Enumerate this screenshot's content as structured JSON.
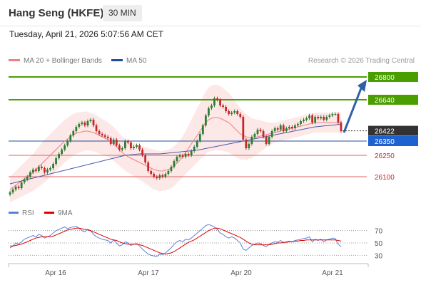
{
  "header": {
    "title": "Hang Seng (HKFE)",
    "timeframe": "30 MIN",
    "datetime": "Tuesday, April 21, 2026 5:07:56 AM CET"
  },
  "legend": {
    "ma20_label": "MA 20 + Bollinger Bands",
    "ma50_label": "MA 50",
    "credit": "Research © 2026 Trading Central"
  },
  "rsi_legend": {
    "rsi_label": "RSI",
    "ma_label": "9MA"
  },
  "colors": {
    "bull": "#2e7d32",
    "bear": "#c62828",
    "ma20": "#f08080",
    "bands_fill": "#fde2e2",
    "ma50": "#4a5aa8",
    "resistance": "#4a9e00",
    "support": "#e06060",
    "pivot": "#1f4e9c",
    "last_price_bg": "#333333",
    "arrow": "#2f5fa8",
    "rsi": "#5b7fd6",
    "rsi_ma": "#e00000"
  },
  "chart_data": [
    {
      "type": "candlestick",
      "title": "Hang Seng (HKFE)",
      "interval": "30 MIN",
      "ylim": [
        25950,
        26860
      ],
      "x_labels": [
        "Apr 16",
        "Apr 17",
        "Apr 20",
        "Apr 21"
      ],
      "levels": [
        {
          "label": "26800",
          "value": 26800,
          "kind": "resistance"
        },
        {
          "label": "26640",
          "value": 26640,
          "kind": "resistance"
        },
        {
          "label": "26422",
          "value": 26422,
          "kind": "last"
        },
        {
          "label": "26350",
          "value": 26350,
          "kind": "pivot"
        },
        {
          "label": "26250",
          "value": 26250,
          "kind": "support"
        },
        {
          "label": "26100",
          "value": 26100,
          "kind": "support"
        }
      ],
      "forecast_target": 26800,
      "closes": [
        25990,
        26010,
        26030,
        26020,
        26060,
        26080,
        26100,
        26130,
        26150,
        26140,
        26170,
        26160,
        26130,
        26150,
        26160,
        26190,
        26230,
        26260,
        26290,
        26320,
        26350,
        26390,
        26420,
        26450,
        26470,
        26480,
        26460,
        26490,
        26500,
        26460,
        26420,
        26400,
        26390,
        26380,
        26370,
        26330,
        26360,
        26320,
        26290,
        26300,
        26350,
        26340,
        26300,
        26310,
        26320,
        26290,
        26250,
        26200,
        26140,
        26120,
        26100,
        26090,
        26110,
        26100,
        26120,
        26140,
        26170,
        26210,
        26240,
        26250,
        26240,
        26260,
        26250,
        26280,
        26310,
        26350,
        26400,
        26460,
        26530,
        26580,
        26600,
        26650,
        26640,
        26600,
        26590,
        26560,
        26540,
        26550,
        26560,
        26540,
        26520,
        26360,
        26300,
        26330,
        26380,
        26400,
        26430,
        26420,
        26380,
        26330,
        26380,
        26420,
        26440,
        26430,
        26460,
        26420,
        26440,
        26450,
        26440,
        26460,
        26470,
        26490,
        26500,
        26510,
        26530,
        26480,
        26520,
        26510,
        26520,
        26500,
        26520,
        26530,
        26540,
        26540,
        26480,
        26420
      ],
      "ma20": [
        26010,
        26025,
        26040,
        26055,
        26070,
        26085,
        26100,
        26115,
        26130,
        26150,
        26170,
        26190,
        26210,
        26230,
        26250,
        26270,
        26290,
        26310,
        26330,
        26350,
        26365,
        26380,
        26395,
        26405,
        26410,
        26415,
        26420,
        26420,
        26415,
        26410,
        26400,
        26390,
        26380,
        26370,
        26360,
        26345,
        26330,
        26310,
        26290,
        26270,
        26255,
        26240,
        26230,
        26220,
        26210,
        26200,
        26190,
        26180,
        26170,
        26160,
        26150,
        26145,
        26140,
        26140,
        26145,
        26150,
        26160,
        26175,
        26195,
        26215,
        26240,
        26270,
        26300,
        26330,
        26360,
        26390,
        26420,
        26450,
        26480,
        26500,
        26510,
        26515,
        26515,
        26510,
        26500,
        26490,
        26480,
        26460,
        26440,
        26420,
        26400,
        26390,
        26380,
        26375,
        26370,
        26375,
        26380,
        26385,
        26390,
        26395,
        26400,
        26405,
        26410,
        26415,
        26420,
        26425,
        26430,
        26435,
        26440,
        26445,
        26450,
        26455,
        26460,
        26465,
        26470,
        26475,
        26480,
        26480,
        26480,
        26480,
        26480,
        26480,
        26480,
        26480,
        26480,
        26480
      ],
      "ma50": [
        26050,
        26055,
        26060,
        26065,
        26070,
        26075,
        26080,
        26085,
        26090,
        26095,
        26100,
        26105,
        26110,
        26115,
        26120,
        26125,
        26130,
        26135,
        26140,
        26145,
        26150,
        26155,
        26160,
        26165,
        26170,
        26175,
        26180,
        26185,
        26190,
        26195,
        26200,
        26205,
        26210,
        26215,
        26220,
        26225,
        26230,
        26235,
        26240,
        26245,
        26250,
        26252,
        26254,
        26256,
        26258,
        26260,
        26260,
        26260,
        26260,
        26260,
        26260,
        26260,
        26260,
        26262,
        26264,
        26266,
        26268,
        26270,
        26272,
        26274,
        26276,
        26278,
        26280,
        26282,
        26284,
        26286,
        26290,
        26294,
        26298,
        26302,
        26306,
        26310,
        26314,
        26318,
        26322,
        26326,
        26330,
        26334,
        26338,
        26342,
        26346,
        26350,
        26354,
        26358,
        26362,
        26366,
        26370,
        26374,
        26378,
        26382,
        26386,
        26390,
        26394,
        26398,
        26402,
        26406,
        26410,
        26414,
        26418,
        26422,
        26426,
        26430,
        26434,
        26438,
        26442,
        26446,
        26450,
        26452,
        26454,
        26456,
        26458,
        26460,
        26462,
        26464,
        26466,
        26468
      ],
      "bb_width": [
        90,
        95,
        100,
        105,
        110,
        115,
        120,
        125,
        130,
        135,
        140,
        145,
        150,
        150,
        150,
        150,
        150,
        150,
        150,
        150,
        150,
        148,
        146,
        144,
        142,
        140,
        138,
        136,
        134,
        132,
        130,
        128,
        126,
        124,
        122,
        120,
        118,
        116,
        114,
        112,
        110,
        112,
        114,
        116,
        118,
        120,
        124,
        128,
        132,
        136,
        140,
        140,
        140,
        140,
        140,
        140,
        140,
        140,
        140,
        140,
        145,
        150,
        160,
        170,
        180,
        190,
        200,
        210,
        220,
        225,
        230,
        230,
        230,
        225,
        220,
        215,
        210,
        205,
        200,
        190,
        180,
        170,
        160,
        150,
        140,
        130,
        120,
        110,
        100,
        90,
        80,
        75,
        70,
        70,
        70,
        70,
        70,
        70,
        70,
        70,
        70,
        70,
        70,
        70,
        70,
        70,
        70,
        70,
        70,
        70,
        70,
        70,
        70,
        70,
        70,
        70
      ]
    },
    {
      "type": "line",
      "title": "",
      "ylim": [
        20,
        80
      ],
      "yticks": [
        "70",
        "50",
        "30"
      ],
      "series": [
        {
          "name": "RSI",
          "values": [
            42,
            45,
            50,
            48,
            52,
            56,
            58,
            60,
            62,
            60,
            64,
            62,
            58,
            60,
            62,
            66,
            70,
            72,
            74,
            76,
            73,
            75,
            76,
            77,
            74,
            70,
            68,
            72,
            70,
            64,
            60,
            58,
            56,
            55,
            54,
            50,
            55,
            50,
            45,
            47,
            52,
            50,
            46,
            48,
            49,
            45,
            40,
            36,
            32,
            30,
            29,
            28,
            32,
            31,
            34,
            38,
            42,
            48,
            52,
            54,
            52,
            56,
            55,
            58,
            62,
            66,
            70,
            74,
            78,
            80,
            78,
            76,
            72,
            66,
            64,
            60,
            58,
            60,
            58,
            54,
            50,
            40,
            38,
            42,
            46,
            48,
            50,
            49,
            46,
            44,
            48,
            50,
            52,
            51,
            54,
            50,
            52,
            53,
            52,
            54,
            55,
            56,
            57,
            58,
            60,
            52,
            56,
            54,
            56,
            52,
            55,
            56,
            58,
            57,
            48,
            44
          ]
        },
        {
          "name": "9MA",
          "values": [
            45,
            45,
            46,
            47,
            48,
            50,
            52,
            54,
            56,
            58,
            59,
            60,
            60,
            60,
            60,
            61,
            63,
            65,
            67,
            69,
            71,
            72,
            73,
            74,
            74,
            73,
            72,
            71,
            70,
            68,
            66,
            64,
            62,
            60,
            58,
            56,
            55,
            54,
            52,
            50,
            49,
            48,
            48,
            48,
            48,
            47,
            46,
            44,
            42,
            40,
            38,
            36,
            34,
            33,
            32,
            33,
            34,
            36,
            39,
            42,
            45,
            48,
            51,
            53,
            55,
            58,
            61,
            64,
            67,
            70,
            72,
            74,
            74,
            73,
            71,
            69,
            67,
            65,
            63,
            61,
            59,
            56,
            53,
            50,
            48,
            47,
            47,
            47,
            47,
            47,
            47,
            48,
            49,
            50,
            50,
            51,
            51,
            52,
            52,
            53,
            53,
            54,
            54,
            55,
            55,
            55,
            55,
            55,
            55,
            55,
            55,
            55,
            55,
            55,
            54,
            53
          ]
        }
      ]
    }
  ]
}
